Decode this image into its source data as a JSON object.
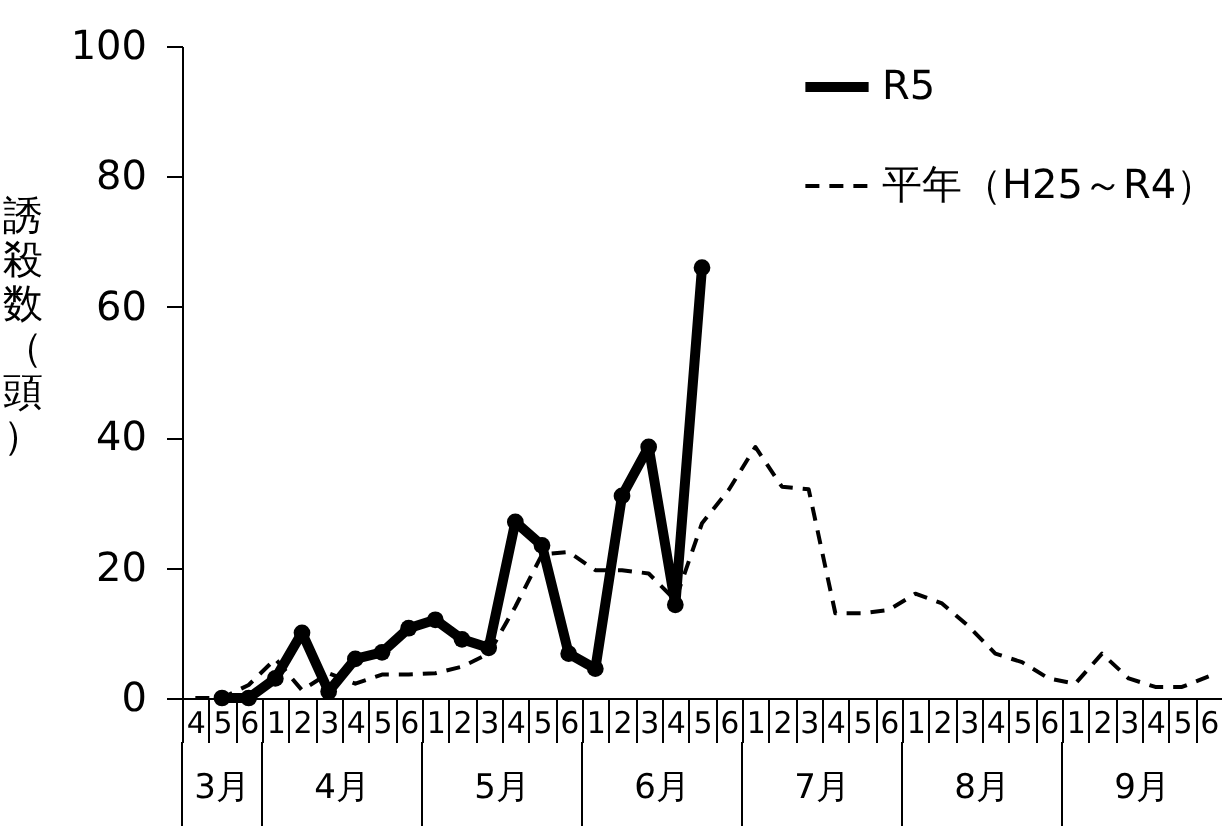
{
  "chart_data": {
    "type": "line",
    "ylabel": "誘殺数（頭）",
    "categories": [
      "4",
      "5",
      "6",
      "1",
      "2",
      "3",
      "4",
      "5",
      "6",
      "1",
      "2",
      "3",
      "4",
      "5",
      "6",
      "1",
      "2",
      "3",
      "4",
      "5",
      "6",
      "1",
      "2",
      "3",
      "4",
      "5",
      "6",
      "1",
      "2",
      "3",
      "4",
      "5",
      "6",
      "1",
      "2",
      "3",
      "4",
      "5",
      "6"
    ],
    "series": [
      {
        "name": "R5",
        "color": "#000000",
        "marker": "circle",
        "line_style": "solid",
        "values": [
          null,
          0,
          0,
          3,
          10,
          1,
          6,
          7,
          10.7,
          12,
          9,
          7.7,
          27,
          23.4,
          6.8,
          4.5,
          31,
          38.5,
          14.3,
          66,
          null,
          null,
          null,
          null,
          null,
          null,
          null,
          null,
          null,
          null,
          null,
          null,
          null,
          null,
          null,
          null,
          null,
          null,
          null
        ]
      },
      {
        "name": "平年（H25～R4）",
        "color": "#000000",
        "marker": "none",
        "line_style": "dashed",
        "values": [
          0,
          0,
          2,
          6,
          1.2,
          3.8,
          2.2,
          3.6,
          3.6,
          3.8,
          4.8,
          6.8,
          14,
          22,
          22.4,
          19.6,
          19.6,
          19.1,
          15,
          26.8,
          31.9,
          38.5,
          32.4,
          32,
          13,
          13,
          13.5,
          16,
          14.5,
          11,
          6.8,
          5.5,
          3,
          2.2,
          6.8,
          3,
          1.7,
          1.7,
          3.3
        ]
      }
    ],
    "annotations": [
      "3月",
      "4月",
      "5月",
      "6月",
      "7月",
      "8月",
      "9月"
    ],
    "ylim": [
      0,
      100
    ],
    "yticks": [
      0,
      20,
      40,
      60,
      80,
      100
    ],
    "grid": false,
    "legend": "top right"
  }
}
